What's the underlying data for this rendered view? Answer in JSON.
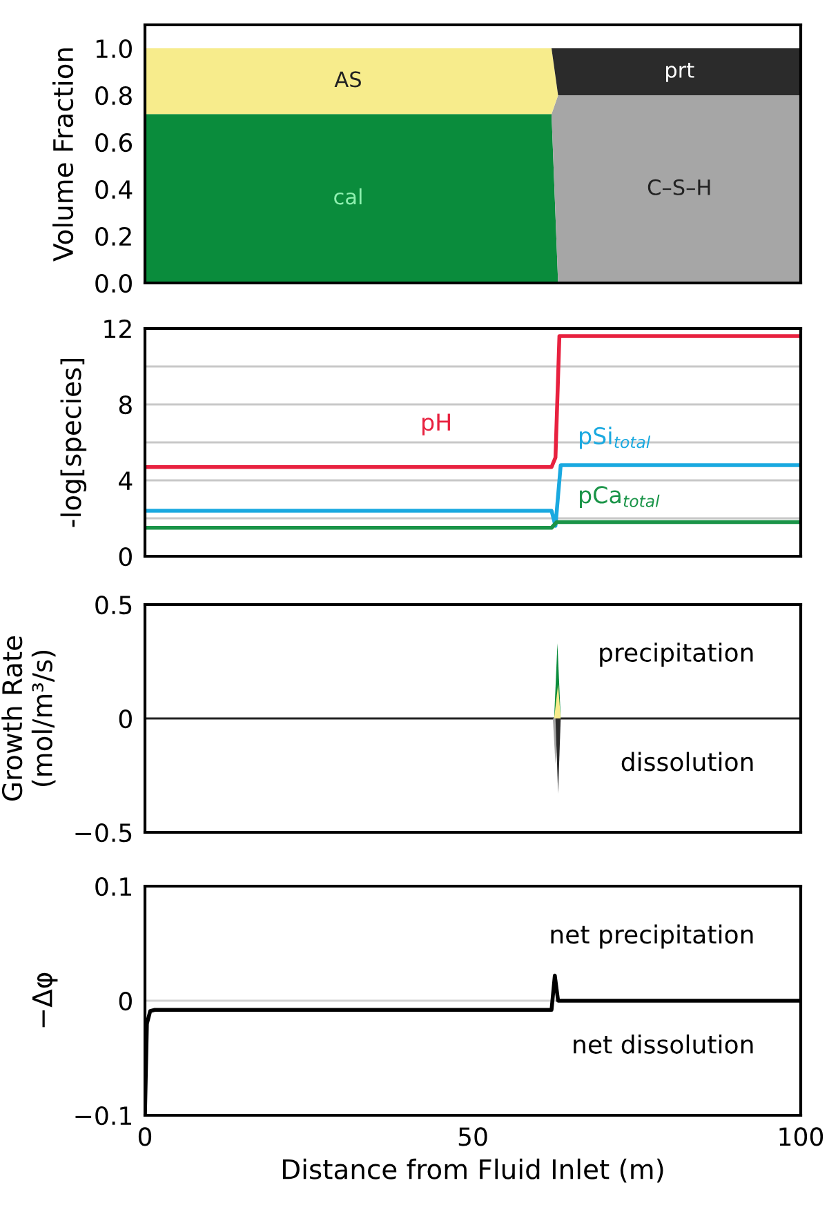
{
  "chart_data": [
    {
      "type": "area",
      "stacked": true,
      "ylabel": "Volume Fraction",
      "x": [
        0,
        62,
        63,
        100
      ],
      "xlim": [
        0,
        100
      ],
      "ylim": [
        0,
        1.1
      ],
      "yticks": [
        {
          "value": 0,
          "label": "0.0"
        },
        0.2,
        0.4,
        0.6,
        0.8,
        {
          "value": 1,
          "label": "1.0"
        }
      ],
      "tick_labels": "y",
      "series": [
        {
          "name": "cal",
          "color": "#0a8c3c",
          "values": [
            0.72,
            0.72,
            0,
            0
          ]
        },
        {
          "name": "C–S–H",
          "color": "#a6a6a6",
          "values": [
            0,
            0,
            0.8,
            0.8
          ]
        },
        {
          "name": "AS",
          "color": "#f7ec8c",
          "values": [
            0.28,
            0.28,
            0,
            0
          ]
        },
        {
          "name": "prt",
          "color": "#2b2b2b",
          "values": [
            0,
            0,
            0.2,
            0.2
          ]
        }
      ]
    },
    {
      "type": "line",
      "ylabel": "-log[species]",
      "xlim": [
        0,
        100
      ],
      "ylim": [
        0,
        12
      ],
      "yticks": [
        0,
        {
          "value": 2,
          "label": null
        },
        4,
        {
          "value": 6,
          "label": null
        },
        8,
        {
          "value": 10,
          "label": null
        },
        12
      ],
      "grid": "y",
      "tick_labels": "y",
      "series": [
        {
          "name": "pH",
          "color": "#e8213f",
          "x": [
            0,
            62,
            62.6,
            63.2,
            100
          ],
          "values": [
            4.7,
            4.7,
            5.2,
            11.6,
            11.6
          ]
        },
        {
          "name": "pSi$_{total}$",
          "color": "#1aa9e0",
          "x": [
            0,
            62,
            62.6,
            63.4,
            100
          ],
          "values": [
            2.4,
            2.4,
            1.6,
            4.8,
            4.8
          ]
        },
        {
          "name": "pCa$_{total}$",
          "color": "#1a9448",
          "x": [
            0,
            62,
            62.8,
            100
          ],
          "values": [
            1.5,
            1.5,
            1.8,
            1.8
          ]
        }
      ]
    },
    {
      "type": "area",
      "ylabel": "Growth Rate\n(mol/m³/s)",
      "xlim": [
        0,
        100
      ],
      "ylim": [
        -0.5,
        0.5
      ],
      "yticks": [
        {
          "value": -0.5,
          "label": "−0.5"
        },
        0,
        0.5
      ],
      "tick_labels": "y",
      "annotations": [
        "precipitation",
        "dissolution"
      ],
      "ref_lines": [
        {
          "axis": "y",
          "value": 0,
          "color": "#222222"
        }
      ],
      "series": [
        {
          "color": "#0a8c3c",
          "x": [
            62.4,
            62.9,
            63.4
          ],
          "values": [
            0,
            0.33,
            0
          ]
        },
        {
          "color": "#f7ec8c",
          "x": [
            62.4,
            63.0,
            63.4
          ],
          "values": [
            0,
            0.15,
            0
          ]
        },
        {
          "color": "#a6a6a6",
          "x": [
            62.2,
            62.6,
            63.0
          ],
          "values": [
            0,
            -0.2,
            0
          ]
        },
        {
          "color": "#2b2b2b",
          "x": [
            62.6,
            63.0,
            63.4
          ],
          "values": [
            0,
            -0.33,
            0
          ]
        }
      ]
    },
    {
      "type": "line",
      "ylabel": "−Δφ",
      "xlabel": "Distance from Fluid Inlet (m)",
      "xlim": [
        0,
        100
      ],
      "xticks": [
        0,
        50,
        100
      ],
      "ylim": [
        -0.1,
        0.1
      ],
      "yticks": [
        {
          "value": -0.1,
          "label": "−0.1"
        },
        0,
        0.1
      ],
      "annotations": [
        "net precipitation",
        "net dissolution"
      ],
      "ref_lines": [
        {
          "axis": "y",
          "value": 0,
          "color": "#d0d0d0"
        }
      ],
      "series": [
        {
          "color": "#000000",
          "x": [
            0,
            0.3,
            0.8,
            1.5,
            61,
            62,
            62.5,
            63,
            100
          ],
          "values": [
            -0.1,
            -0.02,
            -0.009,
            -0.008,
            -0.008,
            -0.008,
            0.022,
            0,
            0
          ]
        }
      ]
    }
  ]
}
